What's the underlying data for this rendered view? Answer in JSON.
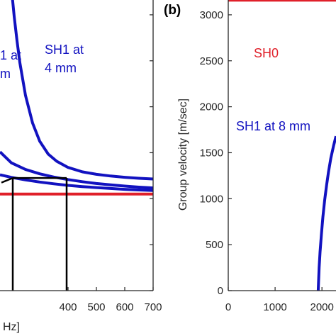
{
  "chart_data": [
    {
      "panel": "a",
      "type": "line",
      "xlabel_visible": "Hz]",
      "xlim": [
        160,
        700
      ],
      "xticks": [
        400,
        500,
        600,
        700
      ],
      "xtick_labels": [
        "400",
        "500",
        "600",
        "700"
      ],
      "ylim": [
        0,
        3300
      ],
      "grid": false,
      "series": [
        {
          "name": "SH0",
          "color": "#e0202a",
          "x": [
            160,
            700
          ],
          "y": [
            1050,
            1050
          ]
        },
        {
          "name": "SH1 at 4 mm",
          "color": "#1212c0",
          "x": [
            200,
            210,
            220,
            230,
            250,
            275,
            300,
            330,
            360,
            400,
            450,
            500,
            550,
            600,
            650,
            700
          ],
          "y": [
            3300,
            2983,
            2718,
            2480,
            2122,
            1822,
            1625,
            1485,
            1407,
            1340,
            1292,
            1265,
            1247,
            1233,
            1222,
            1214
          ]
        },
        {
          "name": "SH1",
          "color": "#1212c0",
          "x": [
            160,
            200,
            250,
            300,
            350,
            400,
            450,
            500,
            550,
            600,
            650,
            700
          ],
          "y": [
            1510,
            1390,
            1318,
            1271,
            1235,
            1208,
            1185,
            1165,
            1150,
            1137,
            1126,
            1117
          ]
        },
        {
          "name": "SH1",
          "color": "#1212c0",
          "x": [
            160,
            200,
            250,
            300,
            350,
            400,
            450,
            500,
            550,
            600,
            650,
            700
          ],
          "y": [
            1260,
            1232,
            1204,
            1181,
            1162,
            1145,
            1132,
            1121,
            1111,
            1102,
            1095,
            1089
          ]
        }
      ],
      "guide_lines": [
        {
          "x": [
            165,
            205
          ],
          "y": [
            1175,
            1225
          ]
        },
        {
          "x": [
            205,
            395
          ],
          "y": [
            1225,
            1225
          ]
        },
        {
          "x": [
            205,
            205
          ],
          "y": [
            1225,
            0
          ]
        },
        {
          "x": [
            395,
            395
          ],
          "y": [
            1225,
            0
          ]
        }
      ],
      "annotations": [
        {
          "text": "SH1 at",
          "color": "#1212c0"
        },
        {
          "text": "4 mm",
          "color": "#1212c0"
        },
        {
          "text": "1 at",
          "color": "#1212c0"
        },
        {
          "text": "m",
          "color": "#1212c0"
        }
      ]
    },
    {
      "panel": "b",
      "panel_label": "(b)",
      "type": "line",
      "ylabel": "Group velocity [m/sec]",
      "xlim": [
        0,
        2300
      ],
      "xticks": [
        0,
        1000,
        2000
      ],
      "xtick_labels": [
        "0",
        "1000",
        "2000"
      ],
      "ylim": [
        0,
        3300
      ],
      "yticks": [
        0,
        500,
        1000,
        1500,
        2000,
        2500,
        3000
      ],
      "ytick_labels": [
        "0",
        "500",
        "1000",
        "1500",
        "2000",
        "2500",
        "3000"
      ],
      "grid": false,
      "series": [
        {
          "name": "SH0",
          "color": "#e0202a",
          "x": [
            0,
            2300
          ],
          "y": [
            3160,
            3160
          ]
        },
        {
          "name": "SH1 at 8 mm",
          "color": "#1212c0",
          "x": [
            1920,
            1940,
            1960,
            1990,
            2020,
            2060,
            2100,
            2140,
            2190,
            2250,
            2300
          ],
          "y": [
            0,
            250,
            420,
            620,
            800,
            990,
            1150,
            1290,
            1440,
            1580,
            1680
          ]
        }
      ],
      "annotations": [
        {
          "text": "SH0",
          "color": "#e0202a"
        },
        {
          "text": "SH1 at 8 mm",
          "color": "#1212c0"
        }
      ]
    }
  ]
}
